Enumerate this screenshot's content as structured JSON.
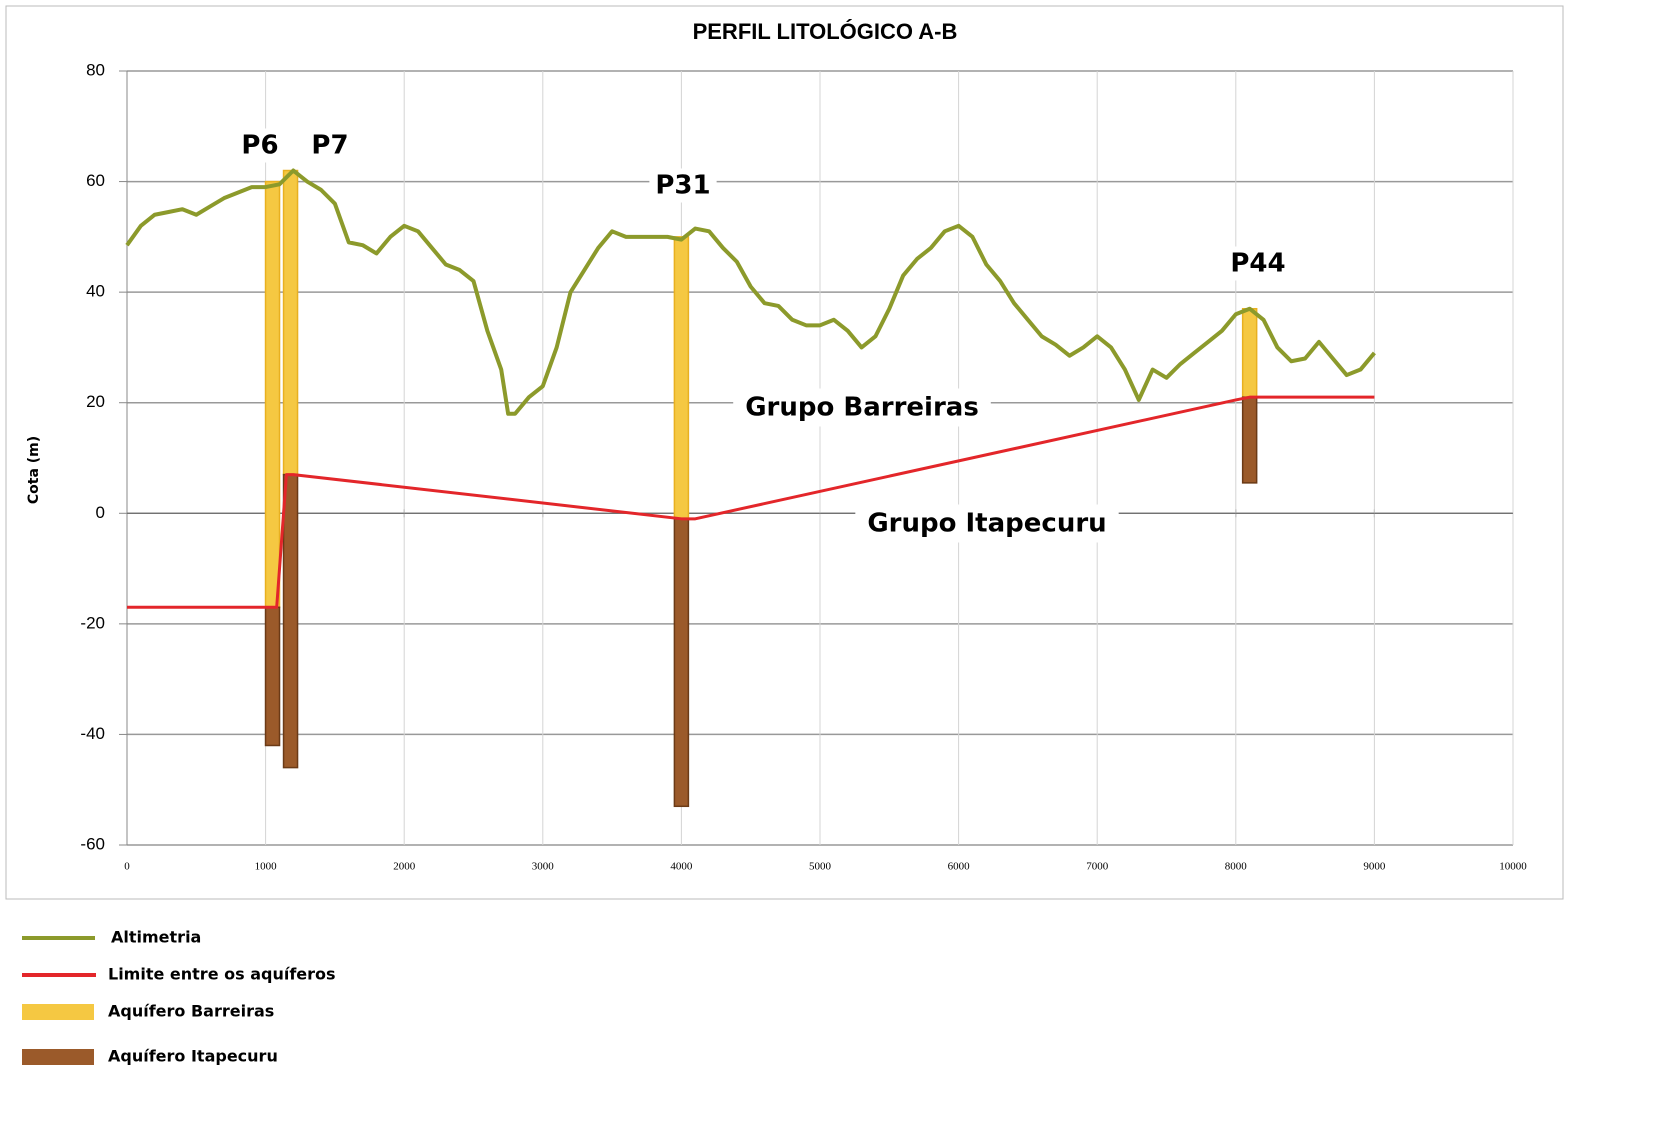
{
  "chart_data": {
    "type": "profile",
    "title": "PERFIL LITOLÓGICO A-B",
    "ylabel": "Cota (m)",
    "xlim": [
      0,
      10000
    ],
    "ylim": [
      -60,
      80
    ],
    "xticks": [
      0,
      1000,
      2000,
      3000,
      4000,
      5000,
      6000,
      7000,
      8000,
      9000,
      10000
    ],
    "yticks": [
      -60,
      -40,
      -20,
      0,
      20,
      40,
      60,
      80
    ],
    "grid": true,
    "series": [
      {
        "name": "Altimetria",
        "color": "#8c9a2b",
        "x": [
          0,
          100,
          200,
          300,
          400,
          500,
          600,
          700,
          800,
          900,
          1000,
          1100,
          1200,
          1300,
          1400,
          1500,
          1600,
          1700,
          1800,
          1900,
          2000,
          2100,
          2200,
          2300,
          2400,
          2500,
          2600,
          2700,
          2750,
          2800,
          2900,
          3000,
          3100,
          3200,
          3300,
          3400,
          3500,
          3600,
          3700,
          3800,
          3900,
          4000,
          4100,
          4200,
          4300,
          4400,
          4500,
          4600,
          4700,
          4800,
          4900,
          5000,
          5100,
          5200,
          5300,
          5400,
          5500,
          5600,
          5700,
          5800,
          5900,
          6000,
          6100,
          6200,
          6300,
          6400,
          6500,
          6600,
          6700,
          6800,
          6900,
          7000,
          7100,
          7200,
          7300,
          7400,
          7500,
          7600,
          7700,
          7800,
          7900,
          8000,
          8100,
          8200,
          8300,
          8400,
          8500,
          8600,
          8700,
          8800,
          8900,
          9000
        ],
        "values": [
          48.5,
          52,
          54,
          54.5,
          55,
          54,
          55.5,
          57,
          58,
          59,
          59,
          59.5,
          62,
          60,
          58.5,
          56,
          49,
          48.5,
          47,
          50,
          52,
          51,
          48,
          45,
          44,
          42,
          33,
          26,
          18,
          18,
          21,
          23,
          30,
          40,
          44,
          48,
          51,
          50,
          50,
          50,
          50,
          49.5,
          51.5,
          51,
          48,
          45.5,
          41,
          38,
          37.5,
          35,
          34,
          34,
          35,
          33,
          30,
          32,
          37,
          43,
          46,
          48,
          51,
          52,
          50,
          45,
          42,
          38,
          35,
          32,
          30.5,
          28.5,
          30,
          32,
          30,
          26,
          20.5,
          26,
          24.5,
          27,
          29,
          31,
          33,
          36,
          37,
          35,
          30,
          27.5,
          28,
          31,
          28,
          25,
          26,
          29
        ]
      },
      {
        "name": "Limite entre os aquíferos",
        "color": "#e3262a",
        "x": [
          0,
          1000,
          1080,
          1150,
          1200,
          4000,
          4100,
          8000,
          8100,
          9000
        ],
        "values": [
          -17,
          -17,
          -17,
          7,
          7,
          -1,
          -1,
          20.5,
          21,
          21
        ]
      }
    ],
    "layers": [
      {
        "name": "Aquífero Barreiras",
        "color": "#f5c842"
      },
      {
        "name": "Aquífero Itapecuru",
        "color": "#9b5a2a"
      }
    ],
    "wells": [
      {
        "label": "P6",
        "x": 1050,
        "intervals": [
          [
            60,
            -17
          ],
          [
            -17,
            -42
          ]
        ]
      },
      {
        "label": "P7",
        "x": 1180,
        "intervals": [
          [
            62,
            7
          ],
          [
            7,
            -46
          ]
        ]
      },
      {
        "label": "P31",
        "x": 4000,
        "intervals": [
          [
            50,
            -1
          ],
          [
            -1,
            -53
          ]
        ]
      },
      {
        "label": "P44",
        "x": 8100,
        "intervals": [
          [
            37,
            21
          ],
          [
            21,
            5.5
          ]
        ]
      }
    ],
    "annotations": [
      "Grupo Barreiras",
      "Grupo Itapecuru"
    ]
  }
}
